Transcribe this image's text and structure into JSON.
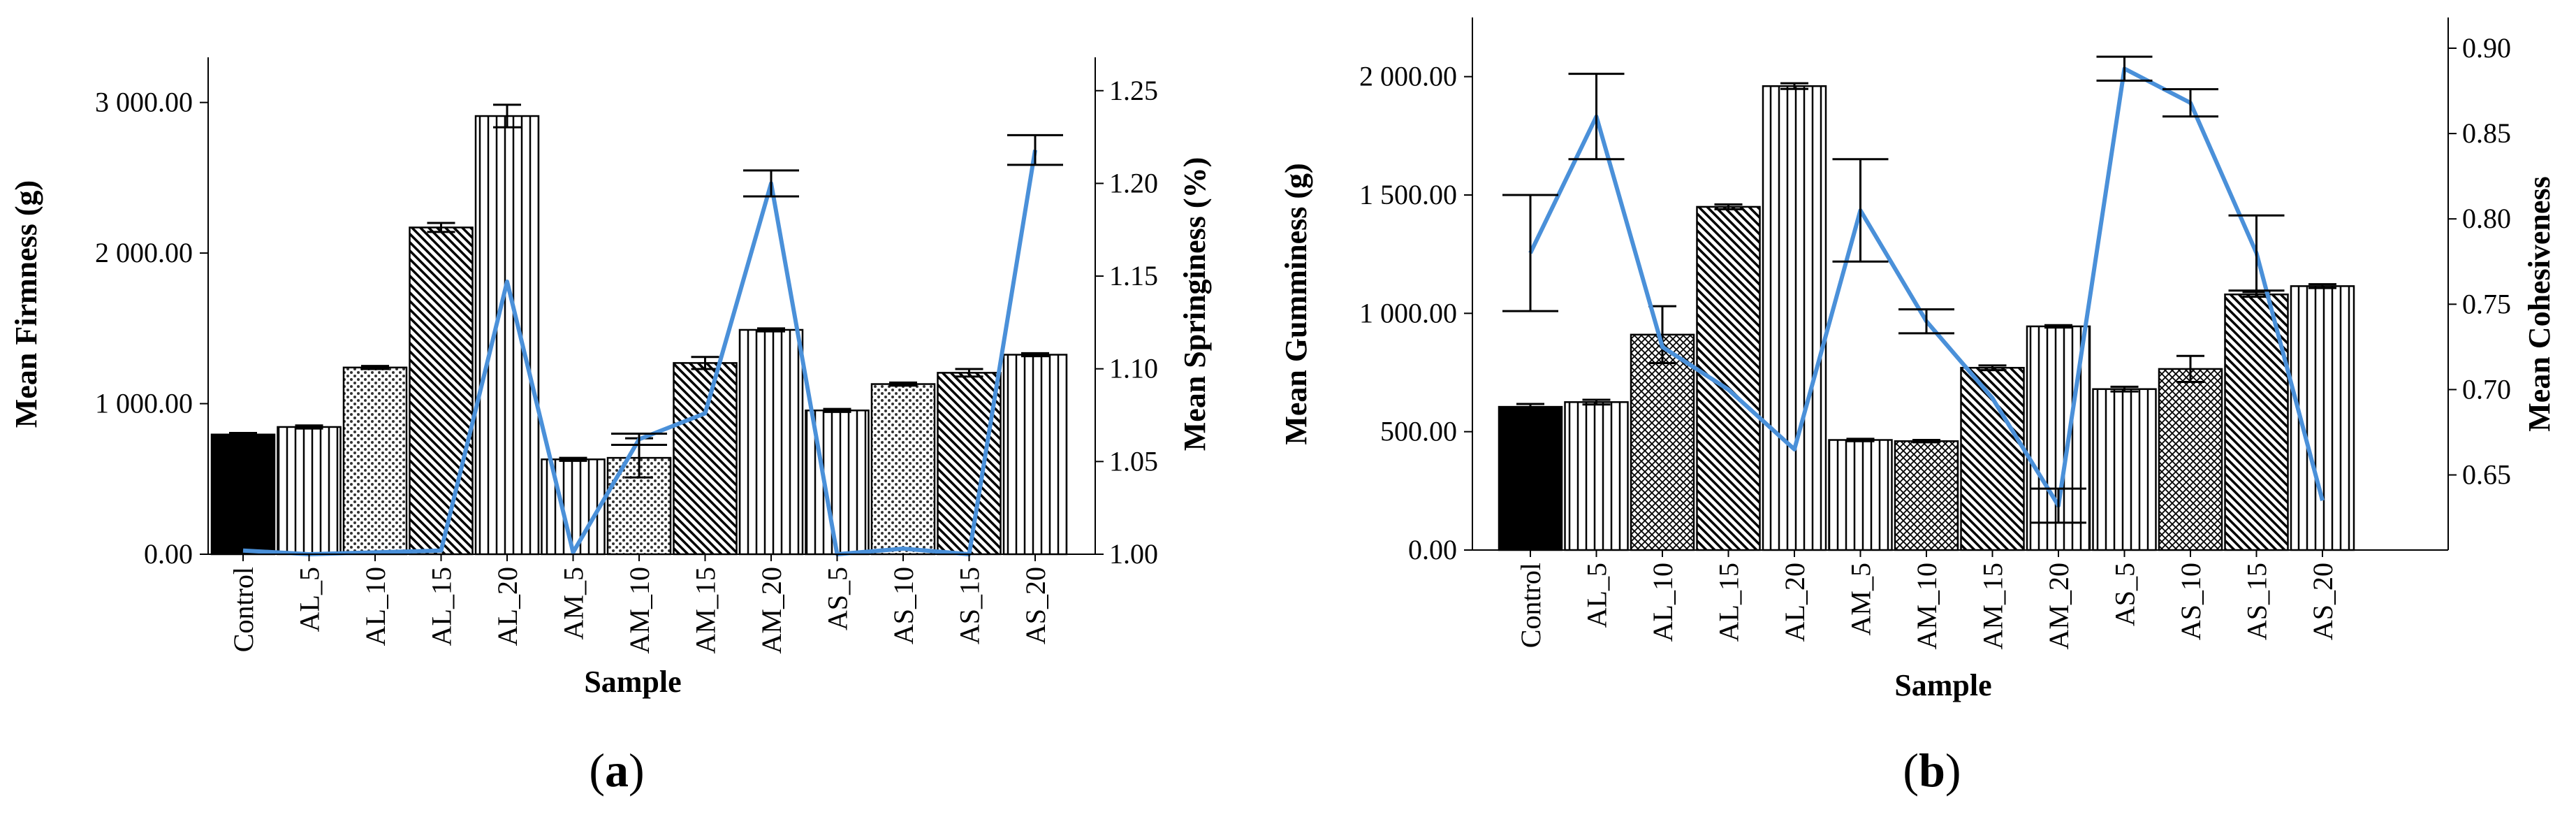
{
  "chart_data": [
    {
      "type": "bar",
      "panel_label": "a",
      "categories": [
        "Control",
        "AL_5",
        "AL_10",
        "AL_15",
        "AL_20",
        "AM_5",
        "AM_10",
        "AM_15",
        "AM_20",
        "AS_5",
        "AS_10",
        "AS_15",
        "AS_20"
      ],
      "series": [
        {
          "name": "Mean Firmness (g)",
          "kind": "bar",
          "axis": "left",
          "values": [
            795,
            845,
            1240,
            2170,
            2910,
            630,
            640,
            1270,
            1490,
            955,
            1130,
            1205,
            1325
          ],
          "errors": [
            10,
            10,
            10,
            30,
            75,
            10,
            130,
            40,
            10,
            10,
            10,
            25,
            10
          ]
        },
        {
          "name": "Mean Springiness (%)",
          "kind": "line",
          "axis": "right",
          "color": "#4a90d9",
          "values": [
            1.002,
            1.0,
            1.001,
            1.002,
            1.147,
            1.001,
            1.062,
            1.076,
            1.2,
            1.0,
            1.003,
            1.0,
            1.218
          ],
          "errors": [
            0.0,
            0.0,
            0.0,
            0.0,
            0.0,
            0.0,
            0.003,
            0.0,
            0.007,
            0.0,
            0.0,
            0.0,
            0.008
          ]
        }
      ],
      "xlabel": "Sample",
      "ylabel": "Mean Firmness (g)",
      "y2label": "Mean Springiness (%)",
      "ylim": [
        0,
        3300
      ],
      "y2lim": [
        1.0,
        1.268
      ],
      "yticks": [
        "0.00",
        "1 000.00",
        "2 000.00",
        "3 000.00"
      ],
      "ytick_values": [
        0,
        1000,
        2000,
        3000
      ],
      "y2ticks": [
        "1.00",
        "1.05",
        "1.10",
        "1.15",
        "1.20",
        "1.25"
      ],
      "y2tick_values": [
        1.0,
        1.05,
        1.1,
        1.15,
        1.2,
        1.25
      ],
      "patterns": [
        "solid",
        "vlines",
        "dots",
        "diag",
        "vlines",
        "vlines",
        "dots",
        "diag",
        "vlines",
        "vlines",
        "dots",
        "diag",
        "vlines"
      ]
    },
    {
      "type": "bar",
      "panel_label": "b",
      "categories": [
        "Control",
        "AL_5",
        "AL_10",
        "AL_15",
        "AL_20",
        "AM_5",
        "AM_10",
        "AM_15",
        "AM_20",
        "AS_5",
        "AS_10",
        "AS_15",
        "AS_20"
      ],
      "series": [
        {
          "name": "Mean Gumminess (g)",
          "kind": "bar",
          "axis": "left",
          "values": [
            605,
            625,
            910,
            1450,
            1960,
            465,
            460,
            770,
            945,
            680,
            765,
            1080,
            1115
          ],
          "errors": [
            12,
            10,
            120,
            10,
            12,
            5,
            5,
            10,
            5,
            10,
            55,
            10,
            8
          ]
        },
        {
          "name": "Mean Cohesiveness",
          "kind": "line",
          "axis": "right",
          "color": "#4a90d9",
          "values": [
            0.78,
            0.86,
            0.725,
            0.7,
            0.665,
            0.805,
            0.74,
            0.695,
            0.632,
            0.888,
            0.868,
            0.78,
            0.635
          ],
          "errors": [
            0.034,
            0.025,
            0.0,
            0.0,
            0.0,
            0.03,
            0.007,
            0.0,
            0.01,
            0.007,
            0.008,
            0.022,
            0.0
          ]
        }
      ],
      "xlabel": "Sample",
      "ylabel": "Mean Gumminess (g)",
      "y2label": "Mean Cohesiveness",
      "ylim": [
        0,
        2250
      ],
      "y2lim": [
        0.606,
        0.918
      ],
      "yticks": [
        "0.00",
        "500.00",
        "1 000.00",
        "1 500.00",
        "2 000.00"
      ],
      "ytick_values": [
        0,
        500,
        1000,
        1500,
        2000
      ],
      "y2ticks": [
        "0.65",
        "0.70",
        "0.75",
        "0.80",
        "0.85",
        "0.90"
      ],
      "y2tick_values": [
        0.65,
        0.7,
        0.75,
        0.8,
        0.85,
        0.9
      ],
      "patterns": [
        "solid",
        "vlines",
        "cross",
        "diag",
        "vlines",
        "vlines",
        "cross",
        "diag",
        "vlines",
        "vlines",
        "cross",
        "diag",
        "vlines"
      ]
    }
  ]
}
